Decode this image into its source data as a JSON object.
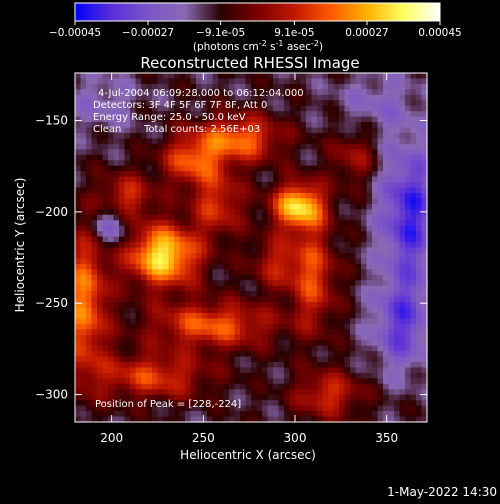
{
  "colorbar": {
    "tick_labels": [
      "-0.00045",
      "-0.00027",
      "-9.1e-05",
      "9.1e-05",
      "0.00027",
      "0.00045"
    ],
    "tick_values": [
      -0.00045,
      -0.00027,
      -9.1e-05,
      9.1e-05,
      0.00027,
      0.00045
    ],
    "range": [
      -0.00045,
      0.00045
    ],
    "units_prefix": "(photons cm",
    "units_exp1": "-2",
    "units_mid1": " s",
    "units_exp2": "-1",
    "units_mid2": " asec",
    "units_exp3": "-2",
    "units_suffix": ")",
    "colors": [
      "#0000ff",
      "#5a2fd8",
      "#7b55c8",
      "#8a6ab4",
      "#2a0000",
      "#7a0000",
      "#c01800",
      "#ff5a00",
      "#ffb000",
      "#ffff60",
      "#ffffff"
    ]
  },
  "annotations": {
    "line1": "4-Jul-2004 06:09:28.000 to 06:12:04.000",
    "line2": "Detectors: 3F 4F 5F 6F 7F 8F, Att 0",
    "line3": "Energy Range: 25.0 - 50.0 keV",
    "line4_a": "Clean",
    "line4_b": "Total counts: 2.56E+03",
    "peak": "Position of Peak = [228,-224]"
  },
  "footer": {
    "timestamp": "1-May-2022 14:30"
  },
  "chart_data": {
    "type": "heatmap",
    "title": "Reconstructed RHESSI Image",
    "xlabel": "Heliocentric X (arcsec)",
    "ylabel": "Heliocentric Y (arcsec)",
    "xlim": [
      180,
      372
    ],
    "ylim": [
      -315,
      -124
    ],
    "x_ticks": [
      200,
      250,
      300,
      350
    ],
    "y_ticks": [
      -150,
      -200,
      -250,
      -300
    ],
    "x_tick_labels": [
      "200",
      "250",
      "300",
      "350"
    ],
    "y_tick_labels": [
      "-150",
      "-200",
      "-250",
      "-300"
    ],
    "peak": [
      228,
      -224
    ],
    "blobs": [
      {
        "x": 228,
        "y": -224,
        "amp": 0.00045,
        "sx": 14,
        "sy": 12
      },
      {
        "x": 302,
        "y": -197,
        "amp": 0.00043,
        "sx": 10,
        "sy": 9
      },
      {
        "x": 270,
        "y": -160,
        "amp": 0.0003,
        "sx": 16,
        "sy": 9
      },
      {
        "x": 244,
        "y": -172,
        "amp": 0.00026,
        "sx": 12,
        "sy": 10
      },
      {
        "x": 258,
        "y": -196,
        "amp": 0.00022,
        "sx": 10,
        "sy": 12
      },
      {
        "x": 208,
        "y": -192,
        "amp": 0.00022,
        "sx": 10,
        "sy": 9
      },
      {
        "x": 185,
        "y": -250,
        "amp": 0.00032,
        "sx": 9,
        "sy": 28
      },
      {
        "x": 255,
        "y": -262,
        "amp": 0.00028,
        "sx": 24,
        "sy": 9
      },
      {
        "x": 222,
        "y": -290,
        "amp": 0.00024,
        "sx": 22,
        "sy": 9
      },
      {
        "x": 310,
        "y": -236,
        "amp": 0.00024,
        "sx": 9,
        "sy": 20
      },
      {
        "x": 318,
        "y": -300,
        "amp": 0.00022,
        "sx": 13,
        "sy": 9
      },
      {
        "x": 290,
        "y": -228,
        "amp": 0.00018,
        "sx": 10,
        "sy": 10
      },
      {
        "x": 332,
        "y": -170,
        "amp": 0.00015,
        "sx": 9,
        "sy": 11
      },
      {
        "x": 362,
        "y": -200,
        "amp": -0.00028,
        "sx": 11,
        "sy": 26
      },
      {
        "x": 358,
        "y": -262,
        "amp": -0.00022,
        "sx": 11,
        "sy": 18
      },
      {
        "x": 195,
        "y": -140,
        "amp": -0.0001,
        "sx": 14,
        "sy": 11
      },
      {
        "x": 200,
        "y": -208,
        "amp": -0.00018,
        "sx": 8,
        "sy": 8
      },
      {
        "x": 345,
        "y": -140,
        "amp": -0.0001,
        "sx": 16,
        "sy": 12
      }
    ],
    "background": -0.00011
  }
}
